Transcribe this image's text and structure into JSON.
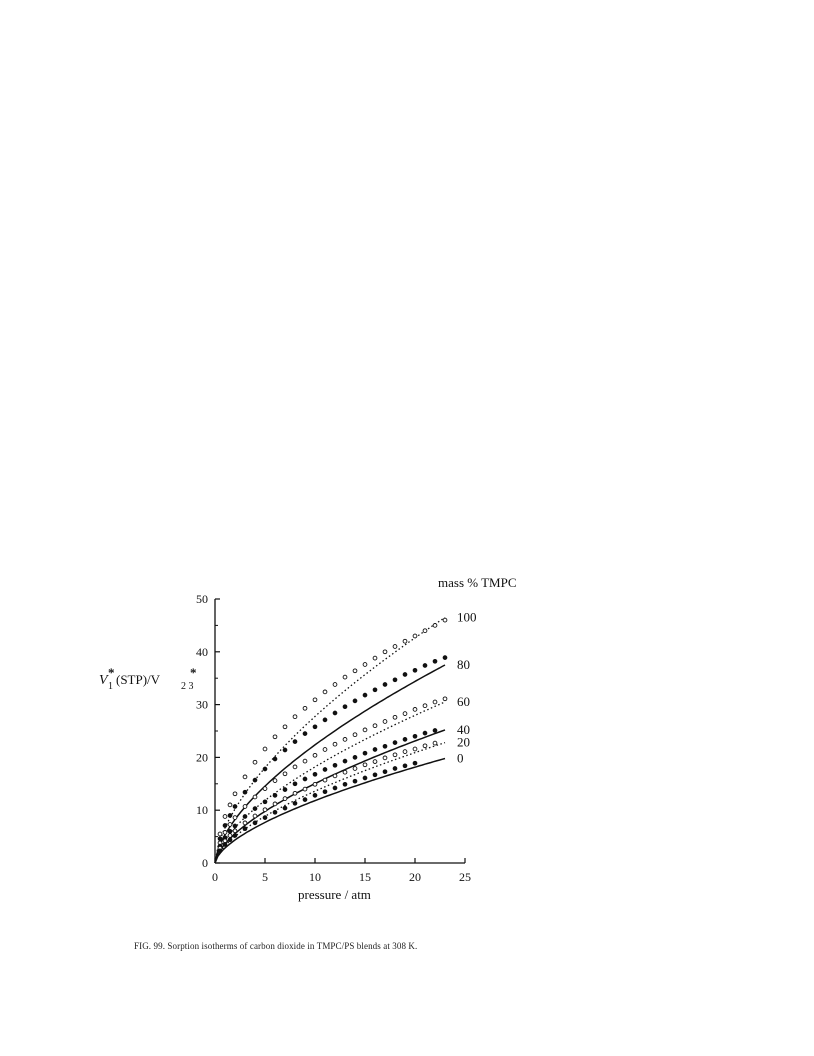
{
  "figure": {
    "caption": "FIG. 99. Sorption isotherms of carbon dioxide in TMPC/PS blends at 308 K."
  },
  "chart_data": {
    "type": "scatter",
    "xlabel": "pressure / atm",
    "ylabel_main": "V",
    "ylabel_sub1": "1",
    "ylabel_sup1": "*",
    "ylabel_mid": "(STP)/V",
    "ylabel_sub2": "2 3",
    "ylabel_sup2": "*",
    "legend_title": "mass % TMPC",
    "xlim": [
      0,
      25
    ],
    "ylim": [
      0,
      50
    ],
    "xticks": [
      0,
      5,
      10,
      15,
      20,
      25
    ],
    "yticks": [
      0,
      10,
      20,
      30,
      40,
      50
    ],
    "grid": false,
    "series": [
      {
        "name": "100",
        "line": "dotted",
        "marker": "open",
        "x": [
          0.5,
          1,
          1.5,
          2,
          3,
          4,
          5,
          6,
          7,
          8,
          9,
          10,
          11,
          12,
          13,
          14,
          15,
          16,
          17,
          18,
          19,
          20,
          21,
          22,
          23
        ],
        "y": [
          5.5,
          8.8,
          11.0,
          13.1,
          16.3,
          19.1,
          21.6,
          23.9,
          25.8,
          27.7,
          29.3,
          30.9,
          32.4,
          33.8,
          35.2,
          36.4,
          37.6,
          38.8,
          40.0,
          41.0,
          42.0,
          43.0,
          44.0,
          45.0,
          46.0
        ],
        "fit_x": [
          0,
          23
        ],
        "fit_end": 46.5
      },
      {
        "name": "80",
        "line": "solid",
        "marker": "filled",
        "x": [
          0.5,
          1,
          1.5,
          2,
          3,
          4,
          5,
          6,
          7,
          8,
          9,
          10,
          11,
          12,
          13,
          14,
          15,
          16,
          17,
          18,
          19,
          20,
          21,
          22,
          23
        ],
        "y": [
          4.6,
          7.1,
          9.0,
          10.7,
          13.4,
          15.7,
          17.8,
          19.7,
          21.4,
          23.0,
          24.5,
          25.8,
          27.1,
          28.4,
          29.6,
          30.7,
          31.8,
          32.8,
          33.8,
          34.7,
          35.7,
          36.5,
          37.4,
          38.2,
          38.9
        ],
        "fit_x": [
          0,
          23
        ],
        "fit_end": 37.5
      },
      {
        "name": "60",
        "line": "dotted",
        "marker": "open",
        "x": [
          0.5,
          1,
          1.5,
          2,
          3,
          4,
          5,
          6,
          7,
          8,
          9,
          10,
          11,
          12,
          13,
          14,
          15,
          16,
          17,
          18,
          19,
          20,
          21,
          22,
          23
        ],
        "y": [
          3.8,
          5.8,
          7.3,
          8.6,
          10.7,
          12.5,
          14.1,
          15.6,
          16.9,
          18.2,
          19.3,
          20.4,
          21.5,
          22.5,
          23.4,
          24.3,
          25.2,
          26.0,
          26.8,
          27.6,
          28.3,
          29.1,
          29.8,
          30.5,
          31.1
        ],
        "fit_x": [
          0,
          23
        ],
        "fit_end": 30.5
      },
      {
        "name": "40",
        "line": "solid",
        "marker": "filled",
        "x": [
          0.5,
          1,
          1.5,
          2,
          3,
          4,
          5,
          6,
          7,
          8,
          9,
          10,
          11,
          12,
          13,
          14,
          15,
          16,
          17,
          18,
          19,
          20,
          21,
          22
        ],
        "y": [
          3.2,
          4.8,
          6.0,
          7.0,
          8.8,
          10.3,
          11.6,
          12.8,
          13.9,
          15.0,
          15.9,
          16.8,
          17.7,
          18.5,
          19.3,
          20.0,
          20.8,
          21.5,
          22.1,
          22.8,
          23.4,
          24.0,
          24.6,
          25.1
        ],
        "fit_x": [
          0,
          23
        ],
        "fit_end": 25.2
      },
      {
        "name": "20",
        "line": "dotted",
        "marker": "open",
        "x": [
          0.5,
          1,
          1.5,
          2,
          3,
          4,
          5,
          6,
          7,
          8,
          9,
          10,
          11,
          12,
          13,
          14,
          15,
          16,
          17,
          18,
          19,
          20,
          21,
          22
        ],
        "y": [
          2.8,
          4.2,
          5.2,
          6.1,
          7.6,
          8.9,
          10.1,
          11.2,
          12.2,
          13.2,
          14.0,
          14.9,
          15.7,
          16.5,
          17.2,
          17.9,
          18.6,
          19.2,
          19.9,
          20.5,
          21.1,
          21.6,
          22.2,
          22.7
        ],
        "fit_x": [
          0,
          23
        ],
        "fit_end": 22.8
      },
      {
        "name": "0",
        "line": "solid",
        "marker": "filled",
        "x": [
          0.5,
          1,
          1.5,
          2,
          3,
          4,
          5,
          6,
          7,
          8,
          9,
          10,
          11,
          12,
          13,
          14,
          15,
          16,
          17,
          18,
          19,
          20
        ],
        "y": [
          2.3,
          3.5,
          4.4,
          5.2,
          6.5,
          7.6,
          8.6,
          9.6,
          10.4,
          11.3,
          12.0,
          12.8,
          13.5,
          14.2,
          14.9,
          15.5,
          16.1,
          16.7,
          17.3,
          17.9,
          18.4,
          18.9
        ],
        "fit_x": [
          0,
          23
        ],
        "fit_end": 19.8
      }
    ]
  }
}
